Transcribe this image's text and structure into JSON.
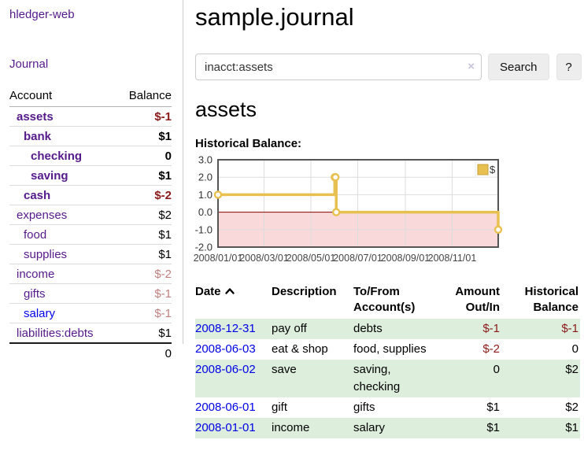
{
  "sidebar": {
    "app_title": "hledger-web",
    "nav": {
      "journal_label": "Journal"
    },
    "accounts_table": {
      "headers": {
        "account": "Account",
        "balance": "Balance"
      },
      "rows": [
        {
          "label": "assets",
          "balance": "$-1",
          "indent": 1,
          "bold": true,
          "balance_class": "neg-strong",
          "link_class": "purple"
        },
        {
          "label": "bank",
          "balance": "$1",
          "indent": 2,
          "bold": true,
          "balance_class": "",
          "link_class": "purple"
        },
        {
          "label": "checking",
          "balance": "0",
          "indent": 3,
          "bold": true,
          "balance_class": "",
          "link_class": "purple"
        },
        {
          "label": "saving",
          "balance": "$1",
          "indent": 3,
          "bold": true,
          "balance_class": "",
          "link_class": "purple"
        },
        {
          "label": "cash",
          "balance": "$-2",
          "indent": 2,
          "bold": true,
          "balance_class": "neg-strong",
          "link_class": "purple"
        },
        {
          "label": "expenses",
          "balance": "$2",
          "indent": 1,
          "bold": false,
          "balance_class": "",
          "link_class": "purple"
        },
        {
          "label": "food",
          "balance": "$1",
          "indent": 2,
          "bold": false,
          "balance_class": "",
          "link_class": "purple"
        },
        {
          "label": "supplies",
          "balance": "$1",
          "indent": 2,
          "bold": false,
          "balance_class": "",
          "link_class": "purple"
        },
        {
          "label": "income",
          "balance": "$-2",
          "indent": 1,
          "bold": false,
          "balance_class": "neg-light",
          "link_class": "purple"
        },
        {
          "label": "gifts",
          "balance": "$-1",
          "indent": 2,
          "bold": false,
          "balance_class": "neg-light",
          "link_class": "purple"
        },
        {
          "label": "salary",
          "balance": "$-1",
          "indent": 2,
          "bold": false,
          "balance_class": "neg-light",
          "link_class": "blue"
        },
        {
          "label": "liabilities:debts",
          "balance": "$1",
          "indent": 1,
          "bold": false,
          "balance_class": "",
          "link_class": "purple"
        }
      ],
      "total": "0"
    }
  },
  "main": {
    "title": "sample.journal",
    "search": {
      "value": "inacct:assets",
      "placeholder": "",
      "clear_icon": "×",
      "search_button": "Search",
      "help_button": "?"
    },
    "account_heading": "assets",
    "chart_heading": "Historical Balance:"
  },
  "chart_data": {
    "type": "line",
    "title": "Historical Balance",
    "step": true,
    "series": [
      {
        "name": "$",
        "points": [
          [
            "2008-01-01",
            1
          ],
          [
            "2008-06-01",
            2
          ],
          [
            "2008-06-02",
            2
          ],
          [
            "2008-06-03",
            0
          ],
          [
            "2008-12-31",
            -1
          ]
        ]
      }
    ],
    "x_range": [
      "2008-01-01",
      "2008-12-31"
    ],
    "x_ticks": [
      "2008/01/01",
      "2008/03/01",
      "2008/05/01",
      "2008/07/01",
      "2008/09/01",
      "2008/11/01"
    ],
    "y_ticks": [
      3.0,
      2.0,
      1.0,
      0.0,
      -1.0,
      -2.0
    ],
    "ylim": [
      -2,
      3
    ],
    "grid": true,
    "legend": {
      "label": "$",
      "position": "top-right"
    },
    "colors": {
      "line": "#e8c04f",
      "marker_fill": "#ffffff",
      "negative_fill": "#f9d9d9",
      "zero_line": "#8b0000",
      "grid": "#dddddd",
      "border": "#555555"
    }
  },
  "transactions": {
    "headers": {
      "date": "Date",
      "description": "Description",
      "accounts": "To/From Account(s)",
      "amount": "Amount Out/In",
      "balance": "Historical Balance"
    },
    "rows": [
      {
        "date": "2008-12-31",
        "description": "pay off",
        "accounts": "debts",
        "amount": "$-1",
        "balance": "$-1"
      },
      {
        "date": "2008-06-03",
        "description": "eat & shop",
        "accounts": "food, supplies",
        "amount": "$-2",
        "balance": "0"
      },
      {
        "date": "2008-06-02",
        "description": "save",
        "accounts": "saving, checking",
        "amount": "0",
        "balance": "$2"
      },
      {
        "date": "2008-06-01",
        "description": "gift",
        "accounts": "gifts",
        "amount": "$1",
        "balance": "$2"
      },
      {
        "date": "2008-01-01",
        "description": "income",
        "accounts": "salary",
        "amount": "$1",
        "balance": "$1"
      }
    ]
  }
}
